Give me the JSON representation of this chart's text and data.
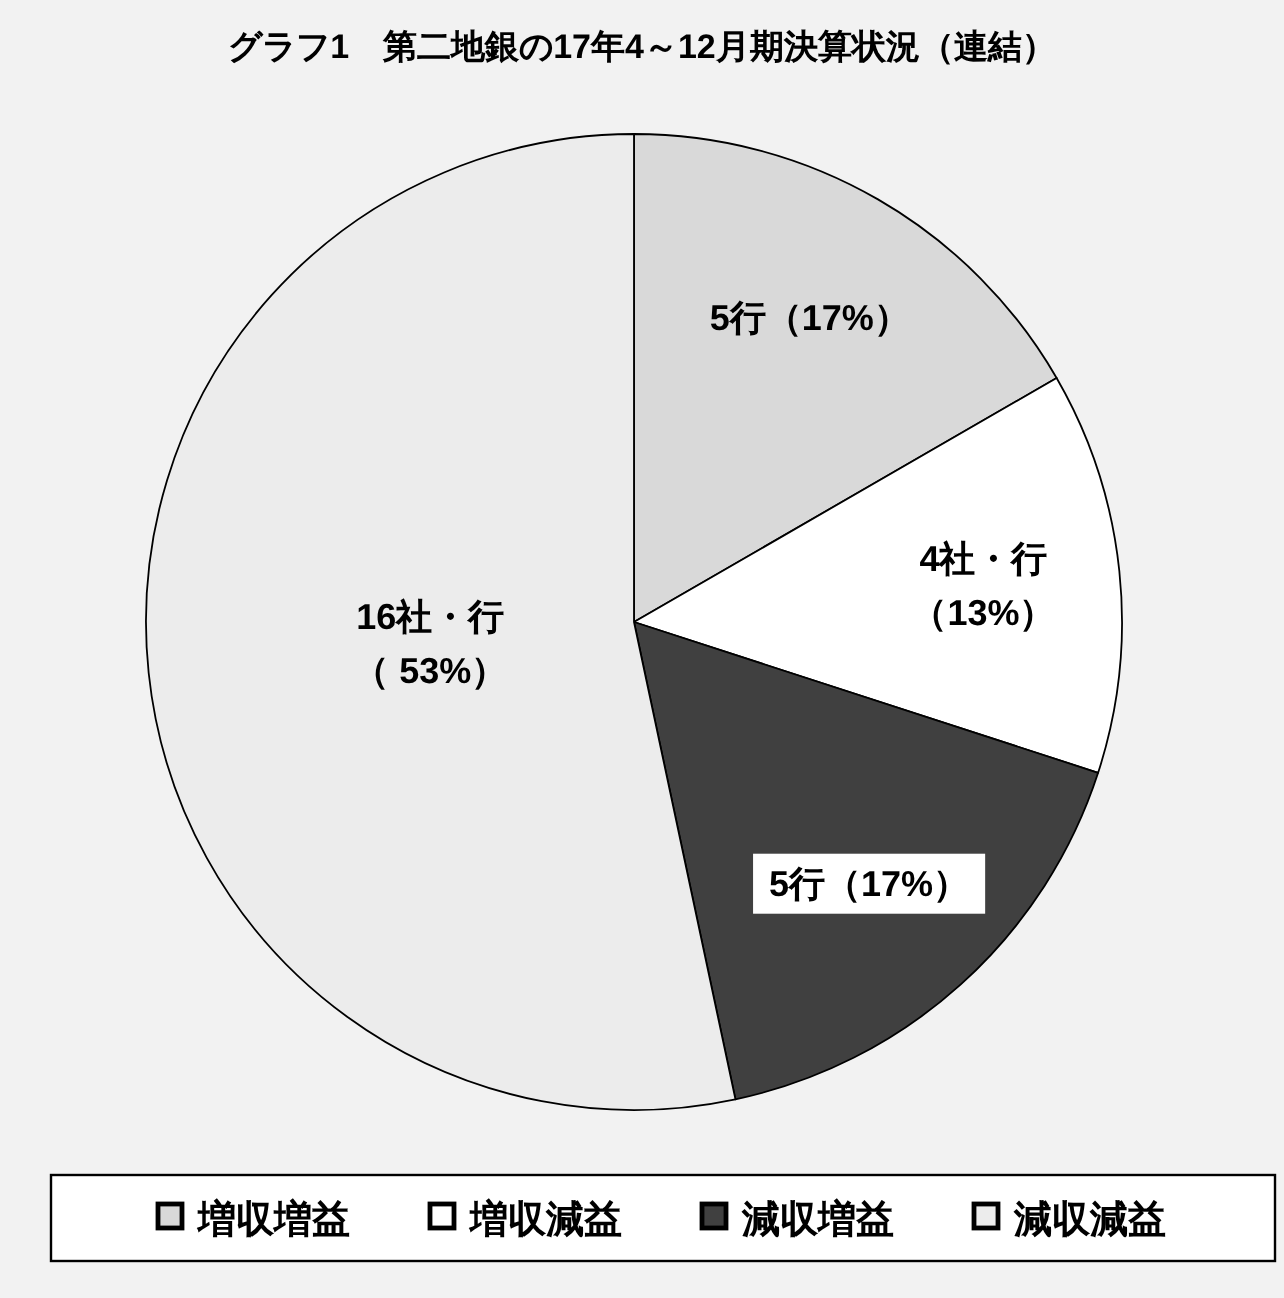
{
  "chart_data": {
    "type": "pie",
    "title": "グラフ1　第二地銀の17年4～12月期決算状況（連結）",
    "categories": [
      "増収増益",
      "増収減益",
      "減収増益",
      "減収減益"
    ],
    "values": [
      5,
      4,
      5,
      16
    ],
    "colors": [
      "#d9d9d9",
      "#ffffff",
      "#404040",
      "#ececec"
    ],
    "value_labels": [
      "5行（17%）",
      "4社・行（13%）",
      "5行（17%）",
      "16社・行（ 53%）"
    ],
    "legend": "bottom"
  }
}
